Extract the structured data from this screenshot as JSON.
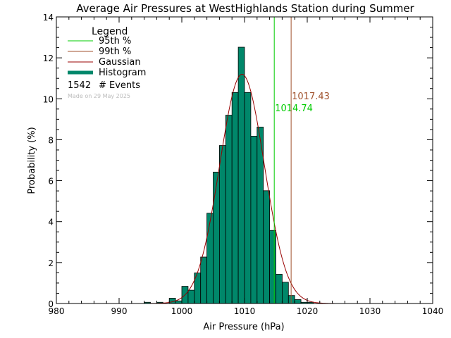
{
  "chart_data": {
    "type": "bar",
    "title": "Average Air Pressures at WestHighlands Station during Summer",
    "xlabel": "Air Pressure (hPa)",
    "ylabel": "Probability (%)",
    "xlim": [
      980,
      1040
    ],
    "ylim": [
      0,
      14
    ],
    "x_ticks": [
      "980",
      "990",
      "1000",
      "1010",
      "1020",
      "1030",
      "1040"
    ],
    "y_ticks": [
      "0",
      "2",
      "4",
      "6",
      "8",
      "10",
      "12",
      "14"
    ],
    "bin_width": 1,
    "bins": [
      {
        "x": 994.5,
        "value": 0.06
      },
      {
        "x": 996.5,
        "value": 0.06
      },
      {
        "x": 998.5,
        "value": 0.26
      },
      {
        "x": 999.5,
        "value": 0.13
      },
      {
        "x": 1000.5,
        "value": 0.84
      },
      {
        "x": 1001.5,
        "value": 0.65
      },
      {
        "x": 1002.5,
        "value": 1.49
      },
      {
        "x": 1003.5,
        "value": 2.27
      },
      {
        "x": 1004.5,
        "value": 4.41
      },
      {
        "x": 1005.5,
        "value": 6.42
      },
      {
        "x": 1006.5,
        "value": 7.72
      },
      {
        "x": 1007.5,
        "value": 9.2
      },
      {
        "x": 1008.5,
        "value": 10.31
      },
      {
        "x": 1009.5,
        "value": 12.52
      },
      {
        "x": 1010.5,
        "value": 10.31
      },
      {
        "x": 1011.5,
        "value": 8.17
      },
      {
        "x": 1012.5,
        "value": 8.62
      },
      {
        "x": 1013.5,
        "value": 5.51
      },
      {
        "x": 1014.5,
        "value": 3.57
      },
      {
        "x": 1015.5,
        "value": 1.43
      },
      {
        "x": 1016.5,
        "value": 1.04
      },
      {
        "x": 1017.5,
        "value": 0.39
      },
      {
        "x": 1018.5,
        "value": 0.19
      },
      {
        "x": 1019.5,
        "value": 0.06
      },
      {
        "x": 1020.5,
        "value": 0.06
      }
    ],
    "gaussian": {
      "mean": 1009.6,
      "sigma": 3.55,
      "peak": 11.2,
      "color": "#990000"
    },
    "percentiles": [
      {
        "label": "95th %",
        "value": 1014.74,
        "text": "1014.74",
        "color": "#00cc00"
      },
      {
        "label": "99th %",
        "value": 1017.43,
        "text": "1017.43",
        "color": "#a0522d"
      }
    ],
    "histogram_color": "#00876a",
    "grid": false,
    "legend_position": "top-left",
    "legend": {
      "title": "Legend",
      "items": [
        {
          "label": "95th %",
          "color": "#00cc00",
          "style": "line"
        },
        {
          "label": "99th %",
          "color": "#a0522d",
          "style": "line"
        },
        {
          "label": "Gaussian",
          "color": "#990000",
          "style": "line"
        },
        {
          "label": "Histogram",
          "color": "#00876a",
          "style": "thick"
        }
      ],
      "events_count": "1542",
      "events_label": "# Events",
      "made_on": "Made on 29 May 2025"
    }
  }
}
